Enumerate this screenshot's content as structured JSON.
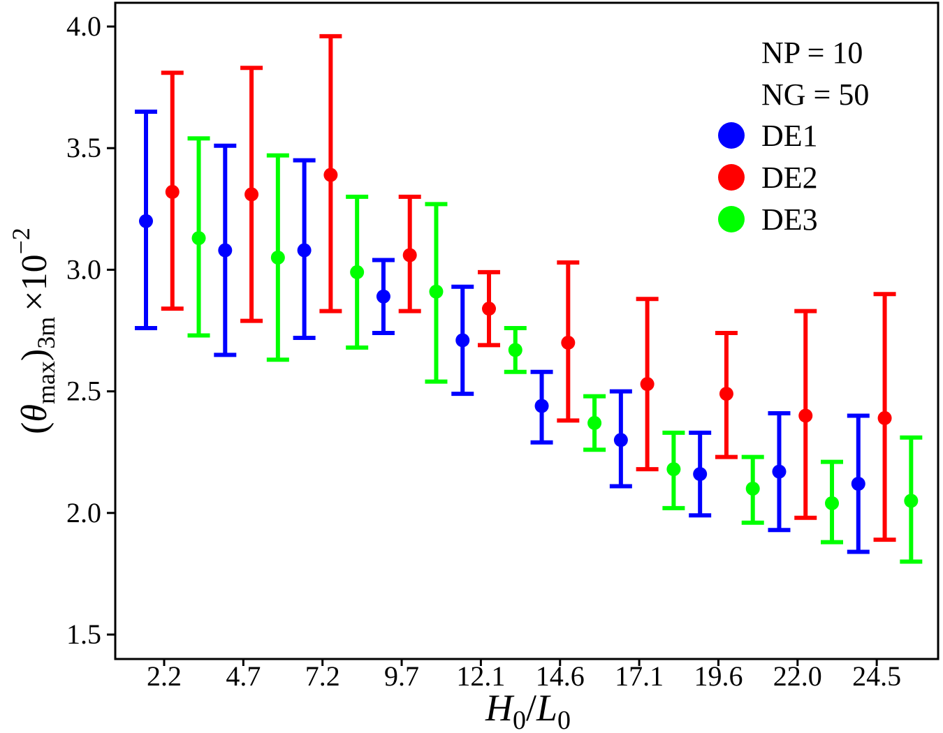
{
  "chart_data": {
    "type": "errorbar",
    "xlabel": {
      "main": "H",
      "sub1": "0",
      "slash": "/",
      "main2": "L",
      "sub2": "0"
    },
    "ylabel": {
      "open": "(",
      "theta": "θ",
      "sub": "max",
      "close": ")",
      "sub2": "3m",
      "times": "×10",
      "sup": "−2"
    },
    "annotations": [
      "NP = 10",
      "NG = 50"
    ],
    "legend_position": "top-right",
    "ylim": [
      1.4,
      4.1
    ],
    "y_ticks": [
      "1.5",
      "2.0",
      "2.5",
      "3.0",
      "3.5",
      "4.0"
    ],
    "x_ticks": [
      "2.2",
      "4.7",
      "7.2",
      "9.7",
      "12.1",
      "14.6",
      "17.1",
      "19.6",
      "22.0",
      "24.5"
    ],
    "grid": false,
    "series": [
      {
        "name": "DE1",
        "color": "#0000ff",
        "points": [
          {
            "x": 1,
            "mean": 3.2,
            "low": 2.76,
            "high": 3.65
          },
          {
            "x": 4,
            "mean": 3.08,
            "low": 2.65,
            "high": 3.51
          },
          {
            "x": 7,
            "mean": 3.08,
            "low": 2.72,
            "high": 3.45
          },
          {
            "x": 10,
            "mean": 2.89,
            "low": 2.74,
            "high": 3.04
          },
          {
            "x": 13,
            "mean": 2.71,
            "low": 2.49,
            "high": 2.93
          },
          {
            "x": 16,
            "mean": 2.44,
            "low": 2.29,
            "high": 2.58
          },
          {
            "x": 19,
            "mean": 2.3,
            "low": 2.11,
            "high": 2.5
          },
          {
            "x": 22,
            "mean": 2.16,
            "low": 1.99,
            "high": 2.33
          },
          {
            "x": 25,
            "mean": 2.17,
            "low": 1.93,
            "high": 2.41
          },
          {
            "x": 28,
            "mean": 2.12,
            "low": 1.84,
            "high": 2.4
          }
        ]
      },
      {
        "name": "DE2",
        "color": "#ff0000",
        "points": [
          {
            "x": 2,
            "mean": 3.32,
            "low": 2.84,
            "high": 3.81
          },
          {
            "x": 5,
            "mean": 3.31,
            "low": 2.79,
            "high": 3.83
          },
          {
            "x": 8,
            "mean": 3.39,
            "low": 2.83,
            "high": 3.96
          },
          {
            "x": 11,
            "mean": 3.06,
            "low": 2.83,
            "high": 3.3
          },
          {
            "x": 14,
            "mean": 2.84,
            "low": 2.69,
            "high": 2.99
          },
          {
            "x": 17,
            "mean": 2.7,
            "low": 2.38,
            "high": 3.03
          },
          {
            "x": 20,
            "mean": 2.53,
            "low": 2.18,
            "high": 2.88
          },
          {
            "x": 23,
            "mean": 2.49,
            "low": 2.23,
            "high": 2.74
          },
          {
            "x": 26,
            "mean": 2.4,
            "low": 1.98,
            "high": 2.83
          },
          {
            "x": 29,
            "mean": 2.39,
            "low": 1.89,
            "high": 2.9
          }
        ]
      },
      {
        "name": "DE3",
        "color": "#00ff00",
        "points": [
          {
            "x": 3,
            "mean": 3.13,
            "low": 2.73,
            "high": 3.54
          },
          {
            "x": 6,
            "mean": 3.05,
            "low": 2.63,
            "high": 3.47
          },
          {
            "x": 9,
            "mean": 2.99,
            "low": 2.68,
            "high": 3.3
          },
          {
            "x": 12,
            "mean": 2.91,
            "low": 2.54,
            "high": 3.27
          },
          {
            "x": 15,
            "mean": 2.67,
            "low": 2.58,
            "high": 2.76
          },
          {
            "x": 18,
            "mean": 2.37,
            "low": 2.26,
            "high": 2.48
          },
          {
            "x": 21,
            "mean": 2.18,
            "low": 2.02,
            "high": 2.33
          },
          {
            "x": 24,
            "mean": 2.1,
            "low": 1.96,
            "high": 2.23
          },
          {
            "x": 27,
            "mean": 2.04,
            "low": 1.88,
            "high": 2.21
          },
          {
            "x": 30,
            "mean": 2.05,
            "low": 1.8,
            "high": 2.31
          }
        ]
      }
    ]
  }
}
